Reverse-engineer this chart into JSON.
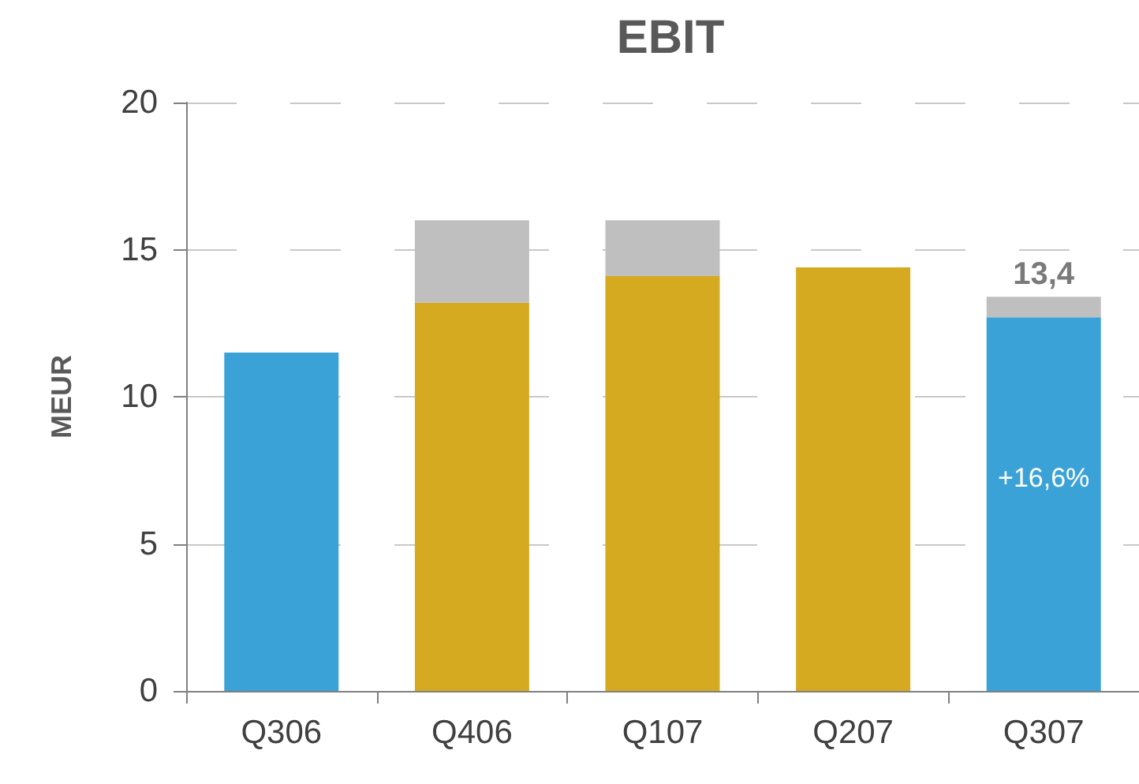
{
  "chart_data": {
    "type": "bar",
    "title": "EBIT",
    "ylabel": "MEUR",
    "categories": [
      "Q306",
      "Q406",
      "Q107",
      "Q207",
      "Q307"
    ],
    "stacked": true,
    "series": [
      {
        "color": "#3ba2d8",
        "values": [
          11.5,
          null,
          null,
          null,
          12.7
        ]
      },
      {
        "color": "#d6aa20",
        "values": [
          null,
          13.2,
          14.1,
          14.4,
          null
        ]
      },
      {
        "color": "#bfbfbf",
        "values": [
          null,
          2.8,
          1.9,
          null,
          0.7
        ]
      }
    ],
    "totals": [
      null,
      null,
      null,
      null,
      "13,4"
    ],
    "annotations": [
      "+16,6%"
    ],
    "ylim": [
      0,
      20
    ],
    "yticks": [
      0,
      5,
      10,
      15,
      20
    ],
    "grid": "y"
  }
}
